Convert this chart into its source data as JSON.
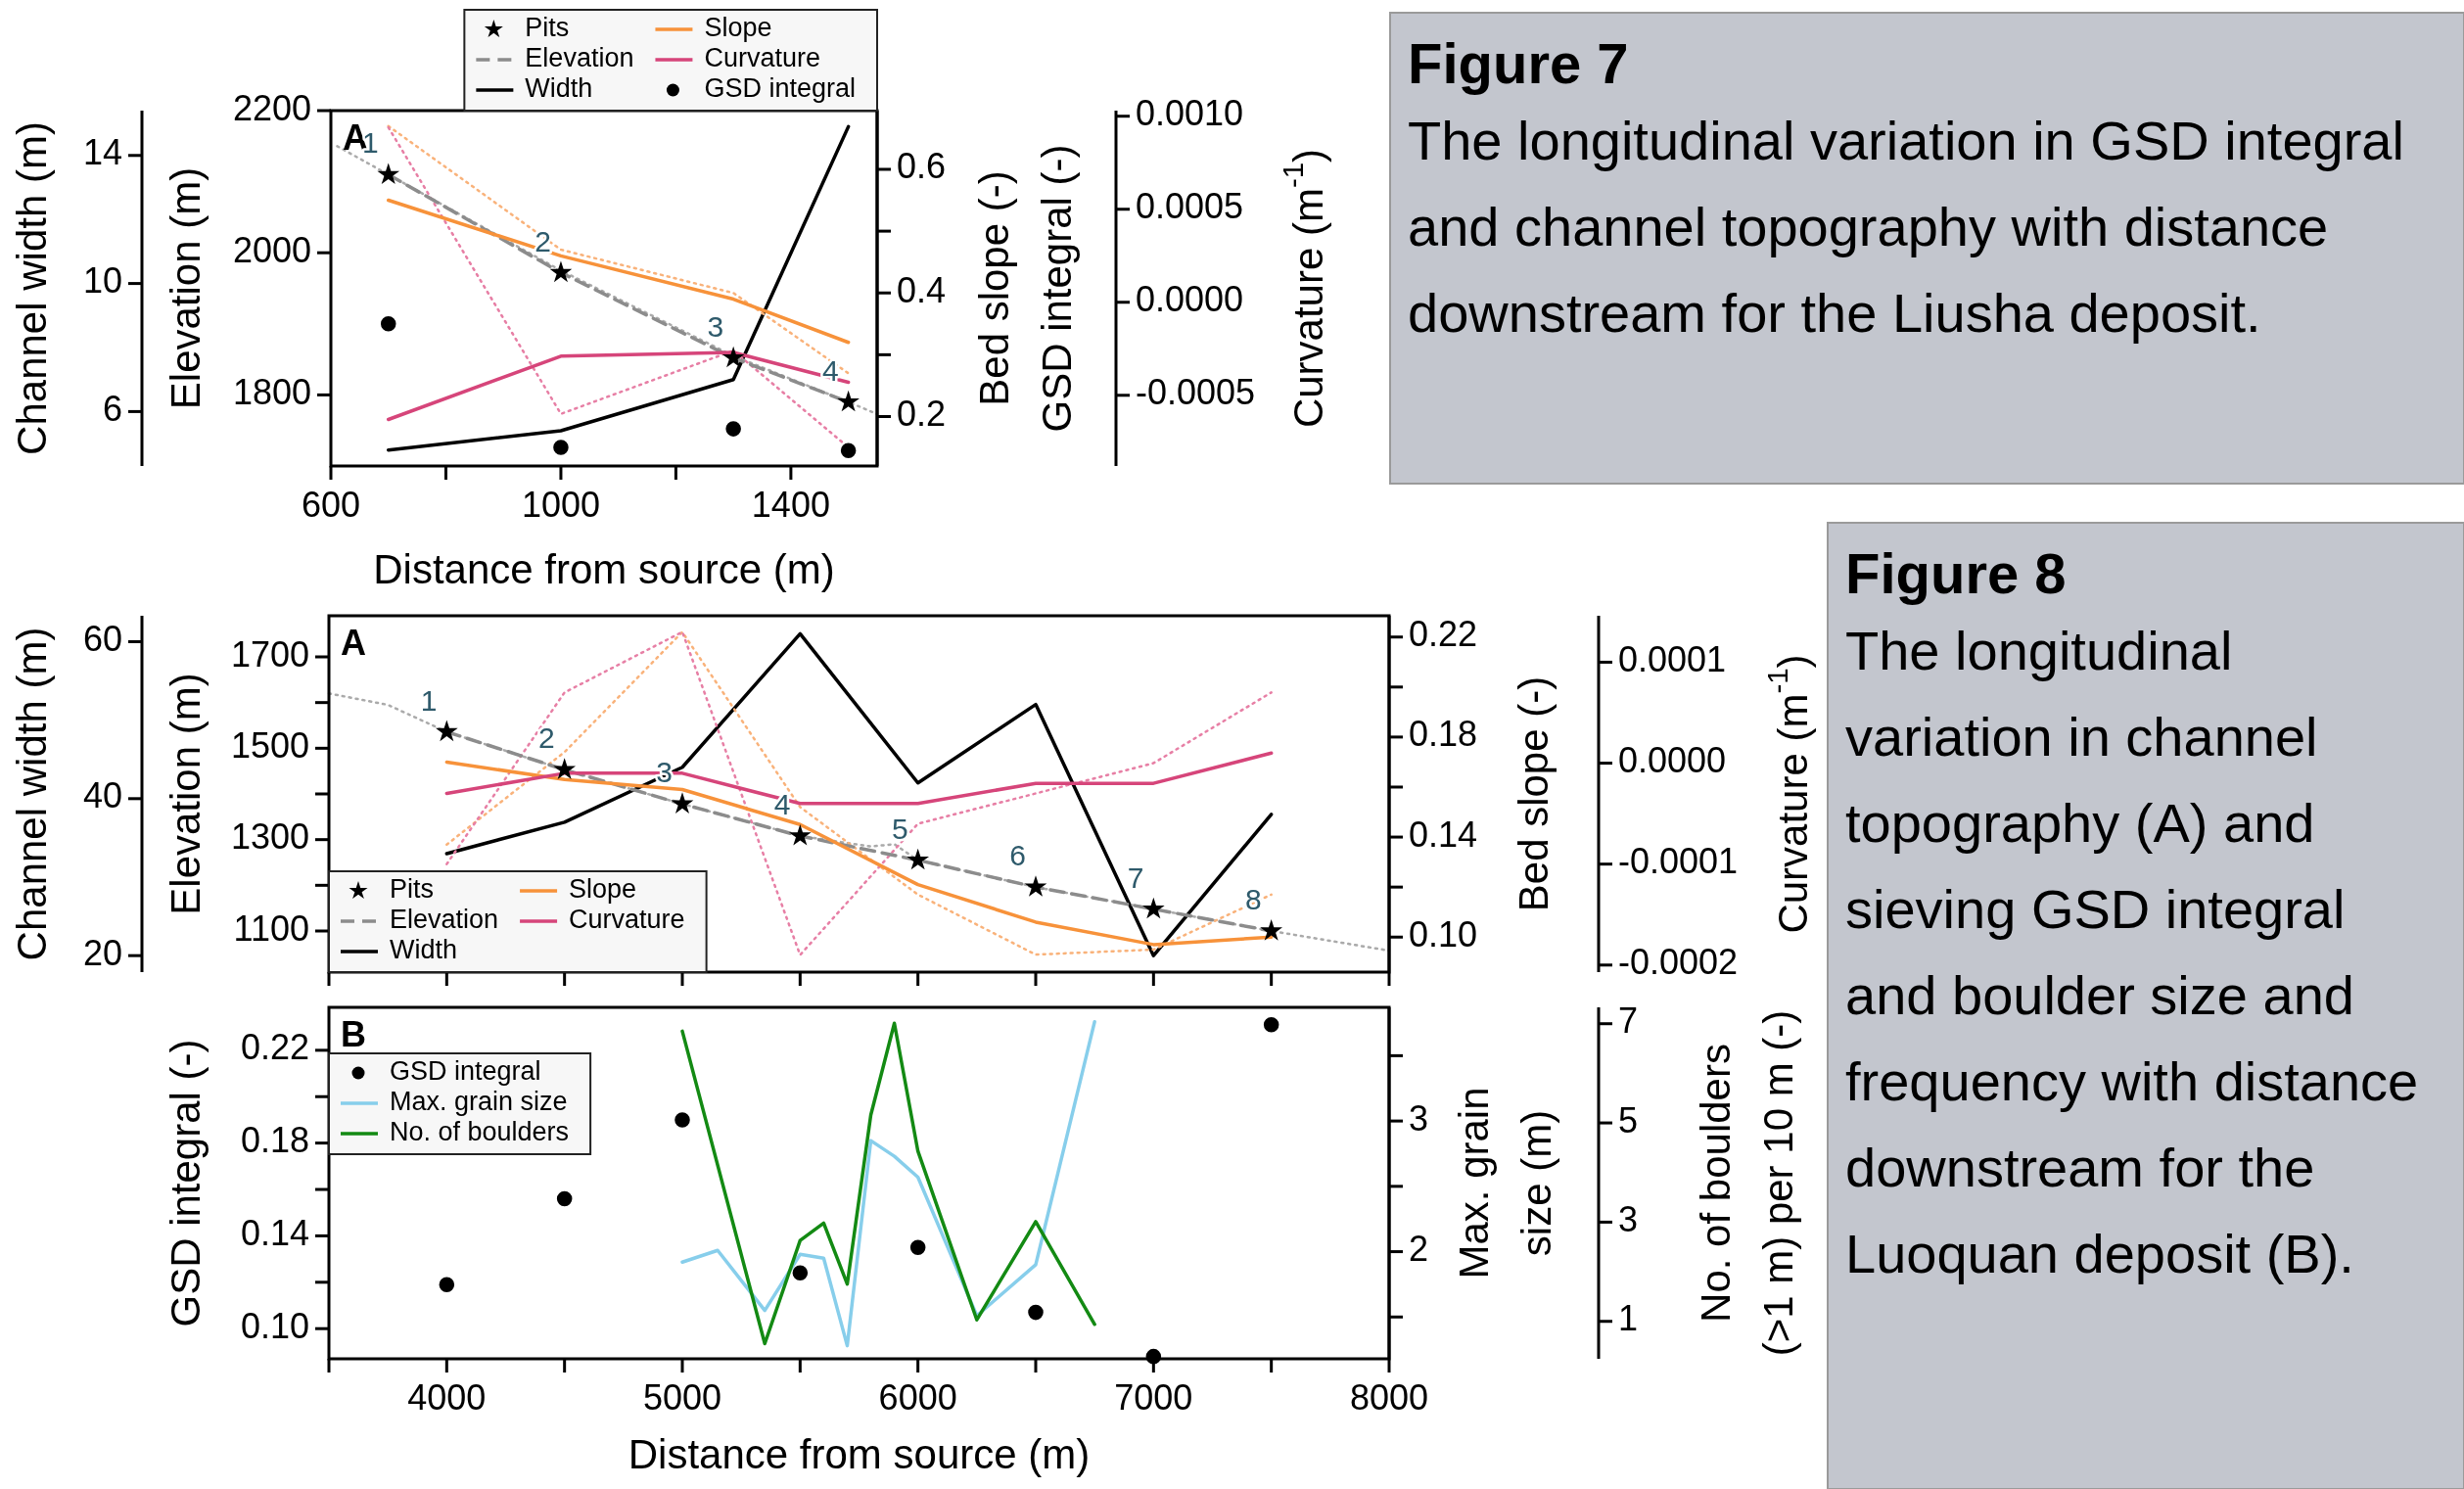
{
  "chart_data": [
    {
      "type": "line",
      "xlabel": "Distance from source (m)",
      "ylabel": "Elevation (m)",
      "y2label": "Bed slope (-)\nGSD integral (-)",
      "y3label": "Curvature (m$^{-1}$)",
      "xlim": [
        600,
        1550
      ],
      "xticks": [
        600,
        {
          "value": 800,
          "label": null
        },
        1000,
        {
          "value": 1200,
          "label": null
        },
        1400
      ],
      "ylim": [
        1700,
        2200
      ],
      "yticks": [
        1800,
        2000,
        2200
      ],
      "y2lim": [
        0.12,
        0.695
      ],
      "y2ticks": [
        0.2,
        {
          "value": 0.3,
          "label": null
        },
        0.4,
        {
          "value": 0.5,
          "label": null
        },
        0.6
      ],
      "y3lim": [
        -0.00088,
        0.00103
      ],
      "y3ticks": [
        {
          "value": -0.0005,
          "label": "-0.0005"
        },
        {
          "value": 0,
          "label": "0.0000"
        },
        {
          "value": 0.0005,
          "label": "0.0005"
        },
        {
          "value": 0.001,
          "label": "0.0010"
        }
      ],
      "legend": "top",
      "series": [
        {
          "name": "Pits",
          "type": "scatter",
          "marker": "star",
          "color": "#000000",
          "x": [
            700,
            1000,
            1300,
            1500
          ],
          "values": [
            2110,
            1972,
            1852,
            1790
          ]
        },
        {
          "name": "Elevation",
          "type": "line",
          "line_style": "dashed",
          "color": "#8c8c8c",
          "x": [
            700,
            1000,
            1300,
            1500
          ],
          "values": [
            2110,
            1972,
            1852,
            1790
          ]
        },
        {
          "name": "Slope",
          "type": "line",
          "axis": "y2",
          "color": "#f7923a",
          "x": [
            700,
            1000,
            1300,
            1500
          ],
          "values": [
            0.55,
            0.46,
            0.39,
            0.32
          ]
        },
        {
          "name": "Curvature",
          "type": "line",
          "axis": "y3",
          "color": "#d6457a",
          "x": [
            700,
            1000,
            1300,
            1500
          ],
          "values": [
            -0.00063,
            -0.00029,
            -0.00027,
            -0.00043
          ]
        },
        {
          "name": "GSD integral",
          "type": "scatter",
          "marker": "circle",
          "axis": "y2",
          "color": "#000000",
          "x": [
            700,
            1000,
            1300,
            1500
          ],
          "values": [
            0.35,
            0.15,
            0.18,
            0.145
          ]
        },
        {
          "type": "line",
          "line_style": "dotted",
          "color": "#aaaaaa",
          "x": [
            611,
            700,
            1000,
            1300,
            1500,
            1550
          ],
          "values": [
            2150,
            2110,
            1975,
            1855,
            1790,
            1773
          ]
        },
        {
          "type": "line",
          "line_style": "dotted",
          "axis": "y2",
          "color": "#f9b27a",
          "x": [
            700,
            1000,
            1300,
            1500
          ],
          "values": [
            0.67,
            0.47,
            0.4,
            0.27
          ]
        },
        {
          "type": "line",
          "line_style": "dotted",
          "axis": "y3",
          "color": "#e77fa5",
          "x": [
            700,
            1000,
            1300,
            1500
          ],
          "values": [
            0.00094,
            -0.0006,
            -0.00026,
            -0.00078
          ]
        }
      ],
      "annotations": [
        "A",
        {
          "text": "1",
          "x": 700,
          "y": 2110
        },
        {
          "text": "2",
          "x": 1000,
          "y": 1972
        },
        {
          "text": "3",
          "x": 1300,
          "y": 1852
        },
        {
          "text": "4",
          "x": 1500,
          "y": 1790
        }
      ]
    },
    {
      "type": "line",
      "ylabel": "Channel width (m)",
      "tick_labels": "y",
      "xlim": [
        600,
        1550
      ],
      "ylim": [
        4.3,
        15.4
      ],
      "yticks": [
        6,
        10,
        14
      ],
      "series": [
        {
          "name": "Width",
          "type": "line",
          "color": "#000000",
          "x": [
            700,
            1000,
            1300,
            1500
          ],
          "values": [
            4.8,
            5.4,
            7.0,
            14.9
          ]
        }
      ]
    },
    {
      "type": "other",
      "title": "Figure 7",
      "annotations": [
        "The longitudinal variation in GSD integral and channel topography with distance downstream for the Liusha deposit."
      ]
    },
    {
      "type": "line",
      "ylabel": "Elevation (m)",
      "y2label": "Bed slope (-)",
      "y3label": "Curvature (m$^{-1}$)",
      "tick_labels": "y",
      "xlim": [
        3500,
        8000
      ],
      "xticks": [
        {
          "value": 3500,
          "label": null
        },
        4000,
        {
          "value": 4500,
          "label": null
        },
        5000,
        {
          "value": 5500,
          "label": null
        },
        6000,
        {
          "value": 6500,
          "label": null
        },
        7000,
        {
          "value": 7500,
          "label": null
        },
        8000
      ],
      "ylim": [
        1010,
        1790
      ],
      "yticks": [
        1100,
        {
          "value": 1200,
          "label": null
        },
        1300,
        {
          "value": 1400,
          "label": null
        },
        1500,
        {
          "value": 1600,
          "label": null
        },
        1700
      ],
      "y2lim": [
        0.086,
        0.2285
      ],
      "y2ticks": [
        {
          "value": 0.1,
          "label": "0.10"
        },
        {
          "value": 0.12,
          "label": null
        },
        0.14,
        {
          "value": 0.16,
          "label": null
        },
        0.18,
        {
          "value": 0.2,
          "label": null
        },
        0.22
      ],
      "y3lim": [
        -0.000207,
        0.000146
      ],
      "y3ticks": [
        {
          "value": -0.0002,
          "label": "-0.0002"
        },
        {
          "value": -0.0001,
          "label": "-0.0001"
        },
        {
          "value": 0,
          "label": "0.0000"
        },
        {
          "value": 0.0001,
          "label": "0.0001"
        }
      ],
      "legend": "bottom left",
      "series": [
        {
          "name": "Pits",
          "type": "scatter",
          "marker": "star",
          "color": "#000000",
          "x": [
            4000,
            4500,
            5000,
            5500,
            6000,
            6500,
            7000,
            7500
          ],
          "values": [
            1536,
            1453,
            1378,
            1308,
            1255,
            1196,
            1148,
            1100
          ]
        },
        {
          "name": "Elevation",
          "type": "line",
          "line_style": "dashed",
          "color": "#8c8c8c",
          "x": [
            4000,
            4500,
            5000,
            5500,
            6000,
            6500,
            7000,
            7500
          ],
          "values": [
            1536,
            1453,
            1378,
            1308,
            1255,
            1196,
            1148,
            1100
          ]
        },
        {
          "name": "Slope",
          "type": "line",
          "axis": "y2",
          "color": "#f7923a",
          "x": [
            4000,
            4500,
            5000,
            5500,
            6000,
            6500,
            7000,
            7500
          ],
          "values": [
            0.17,
            0.163,
            0.159,
            0.145,
            0.121,
            0.106,
            0.097,
            0.1
          ]
        },
        {
          "name": "Curvature",
          "type": "line",
          "axis": "y3",
          "color": "#d6457a",
          "x": [
            4000,
            4500,
            5000,
            5500,
            6000,
            6500,
            7000,
            7500
          ],
          "values": [
            -3e-05,
            -1e-05,
            -1e-05,
            -4e-05,
            -4e-05,
            -2e-05,
            -2e-05,
            1e-05
          ]
        },
        {
          "type": "line",
          "line_style": "dotted",
          "color": "#aaaaaa",
          "x": [
            3500,
            3750,
            4000,
            4500,
            5000,
            5500,
            5800,
            5900,
            6000,
            6500,
            7000,
            7500,
            8000
          ],
          "values": [
            1620,
            1595,
            1536,
            1453,
            1378,
            1308,
            1285,
            1290,
            1255,
            1196,
            1148,
            1100,
            1057
          ]
        },
        {
          "type": "line",
          "line_style": "dotted",
          "axis": "y2",
          "color": "#f9b27a",
          "x": [
            4000,
            4500,
            5000,
            5500,
            6000,
            6500,
            7000,
            7500
          ],
          "values": [
            0.137,
            0.174,
            0.222,
            0.152,
            0.117,
            0.093,
            0.095,
            0.117
          ]
        },
        {
          "type": "line",
          "line_style": "dotted",
          "axis": "y3",
          "color": "#e77fa5",
          "x": [
            4000,
            4500,
            5000,
            5500,
            6000,
            6500,
            7000,
            7500
          ],
          "values": [
            -0.0001,
            7e-05,
            0.00013,
            -0.00019,
            -6e-05,
            -3e-05,
            0.0,
            7e-05
          ]
        }
      ],
      "annotations": [
        "A",
        {
          "text": "1",
          "x": 4000,
          "y": 1536
        },
        {
          "text": "2",
          "x": 4500,
          "y": 1453
        },
        {
          "text": "3",
          "x": 5000,
          "y": 1378
        },
        {
          "text": "4",
          "x": 5500,
          "y": 1308
        },
        {
          "text": "5",
          "x": 6000,
          "y": 1255
        },
        {
          "text": "6",
          "x": 6500,
          "y": 1196
        },
        {
          "text": "7",
          "x": 7000,
          "y": 1148
        },
        {
          "text": "8",
          "x": 7500,
          "y": 1100
        }
      ]
    },
    {
      "type": "line",
      "ylabel": "Channel width (m)",
      "tick_labels": "y",
      "xlim": [
        3500,
        8000
      ],
      "ylim": [
        17.9,
        63.3
      ],
      "yticks": [
        20,
        40,
        60
      ],
      "series": [
        {
          "name": "Width",
          "type": "line",
          "color": "#000000",
          "x": [
            4000,
            4500,
            5000,
            5500,
            6000,
            6500,
            7000,
            7500
          ],
          "values": [
            33,
            37,
            44,
            61,
            42,
            52,
            20,
            38
          ]
        }
      ]
    },
    {
      "type": "line",
      "xlabel": "Distance from source (m)",
      "ylabel": "GSD integral (-)",
      "y2label": "Max. grain\nsize (m)",
      "y3label": "No. of boulders\n(>1 m) per 10 m (-)",
      "xlim": [
        3500,
        8000
      ],
      "xticks": [
        {
          "value": 3500,
          "label": null
        },
        4000,
        {
          "value": 4500,
          "label": null
        },
        5000,
        {
          "value": 5500,
          "label": null
        },
        6000,
        {
          "value": 6500,
          "label": null
        },
        7000,
        {
          "value": 7500,
          "label": null
        },
        8000
      ],
      "ylim": [
        0.087,
        0.2385
      ],
      "yticks": [
        {
          "value": 0.1,
          "label": "0.10"
        },
        {
          "value": 0.12,
          "label": null
        },
        0.14,
        {
          "value": 0.16,
          "label": null
        },
        0.18,
        {
          "value": 0.2,
          "label": null
        },
        0.22
      ],
      "y2lim": [
        1.18,
        3.87
      ],
      "y2ticks": [
        {
          "value": 1.5,
          "label": null
        },
        2,
        {
          "value": 2.5,
          "label": null
        },
        3,
        {
          "value": 3.5,
          "label": null
        }
      ],
      "y3lim": [
        0.245,
        7.33
      ],
      "y3ticks": [
        1,
        3,
        5,
        7
      ],
      "legend": "top left",
      "series": [
        {
          "name": "GSD integral",
          "type": "scatter",
          "marker": "circle",
          "color": "#000000",
          "x": [
            4000,
            4500,
            5000,
            5500,
            6000,
            6500,
            7000,
            7500
          ],
          "values": [
            0.119,
            0.156,
            0.19,
            0.124,
            0.135,
            0.107,
            0.088,
            0.231
          ]
        },
        {
          "name": "Max. grain size",
          "type": "line",
          "axis": "y2",
          "color": "#87ceeb",
          "x": [
            5000,
            5150,
            5350,
            5500,
            5600,
            5700,
            5800,
            5900,
            6000,
            6250,
            6500,
            6750
          ],
          "values": [
            1.92,
            2.01,
            1.55,
            1.98,
            1.95,
            1.28,
            2.85,
            2.73,
            2.57,
            1.51,
            1.9,
            3.76
          ]
        },
        {
          "name": "No. of boulders",
          "type": "line",
          "axis": "y3",
          "color": "#138a13",
          "x": [
            5000,
            5350,
            5500,
            5600,
            5700,
            5800,
            5900,
            6000,
            6250,
            6500,
            6750
          ],
          "values": [
            6.85,
            0.55,
            2.63,
            2.98,
            1.75,
            5.16,
            7.01,
            4.43,
            1.03,
            3.01,
            0.94
          ]
        }
      ],
      "annotations": [
        "B"
      ]
    },
    {
      "type": "other",
      "title": "Figure 8",
      "annotations": [
        "The longitudinal variation in channel topography (A) and sieving GSD integral and boulder size and frequency with distance downstream for the Luoquan deposit (B)."
      ]
    }
  ]
}
